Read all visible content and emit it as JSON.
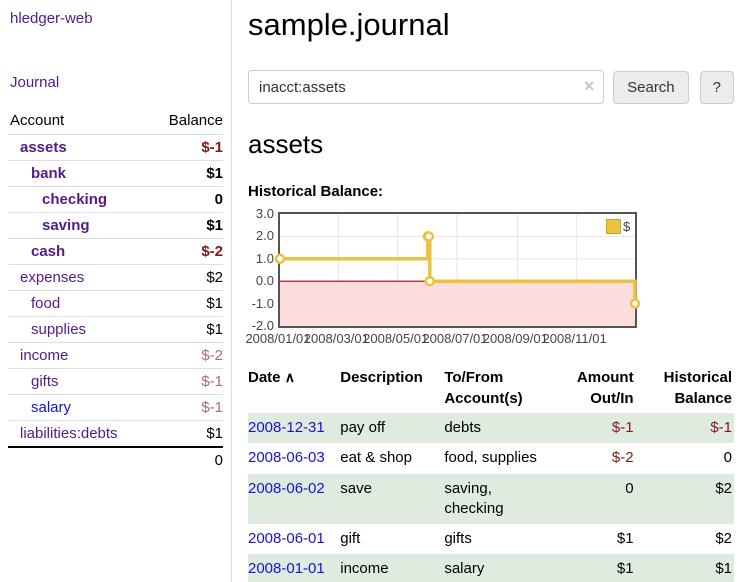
{
  "colors": {
    "link_purple": "#551A8B",
    "link_blue": "#1414d6",
    "negative_strong": "#801818",
    "negative_weak": "#b36b6b",
    "row_stripe": "#dfebdf",
    "divider": "#dddddd",
    "accent_yellow": "#EDC240",
    "chart_border": "#545454",
    "chart_grid": "#e6e6e6",
    "zero_line": "#aa0000",
    "negative_fill": "#ffdddd",
    "axis_text": "#444444",
    "button_bg": "#ececec",
    "button_border": "#cccccc",
    "input_border": "#cccccc",
    "clear_icon": "#c9c1dd"
  },
  "app": {
    "title": "hledger-web"
  },
  "sidebar": {
    "journal_link": "Journal",
    "table": {
      "headers": {
        "account": "Account",
        "balance": "Balance"
      },
      "rows": [
        {
          "account": "assets",
          "balance": "$-1",
          "depth": 1,
          "bold": true,
          "balance_class": "neg-strong",
          "link": "purple"
        },
        {
          "account": "bank",
          "balance": "$1",
          "depth": 2,
          "bold": true,
          "balance_class": "",
          "link": "purple"
        },
        {
          "account": "checking",
          "balance": "0",
          "depth": 3,
          "bold": true,
          "balance_class": "",
          "link": "purple"
        },
        {
          "account": "saving",
          "balance": "$1",
          "depth": 3,
          "bold": true,
          "balance_class": "",
          "link": "purple"
        },
        {
          "account": "cash",
          "balance": "$-2",
          "depth": 2,
          "bold": true,
          "balance_class": "neg-strong",
          "link": "purple"
        },
        {
          "account": "expenses",
          "balance": "$2",
          "depth": 1,
          "bold": false,
          "balance_class": "",
          "link": "purple"
        },
        {
          "account": "food",
          "balance": "$1",
          "depth": 2,
          "bold": false,
          "balance_class": "",
          "link": "purple"
        },
        {
          "account": "supplies",
          "balance": "$1",
          "depth": 2,
          "bold": false,
          "balance_class": "",
          "link": "purple"
        },
        {
          "account": "income",
          "balance": "$-2",
          "depth": 1,
          "bold": false,
          "balance_class": "neg-weak",
          "link": "purple"
        },
        {
          "account": "gifts",
          "balance": "$-1",
          "depth": 2,
          "bold": false,
          "balance_class": "neg-weak",
          "link": "purple"
        },
        {
          "account": "salary",
          "balance": "$-1",
          "depth": 2,
          "bold": false,
          "balance_class": "neg-weak",
          "link": "blue"
        },
        {
          "account": "liabilities:debts",
          "balance": "$1",
          "depth": 1,
          "bold": false,
          "balance_class": "",
          "link": "purple"
        }
      ],
      "total": "0"
    }
  },
  "header": {
    "title": "sample.journal"
  },
  "search": {
    "value": "inacct:assets",
    "clear_icon": "✕",
    "button_label": "Search",
    "help_label": "?"
  },
  "account_page": {
    "title": "assets",
    "chart_label": "Historical Balance:"
  },
  "chart_data": {
    "type": "line",
    "step": true,
    "title": "Historical Balance:",
    "legend": "$",
    "legend_position": "top-right",
    "grid": true,
    "xlim": [
      "2008-01-01",
      "2008-12-31"
    ],
    "ylim": [
      -2,
      3
    ],
    "y_ticks": [
      3.0,
      2.0,
      1.0,
      0.0,
      -1.0,
      -2.0
    ],
    "x_ticks": [
      "2008/01/01",
      "2008/03/01",
      "2008/05/01",
      "2008/07/01",
      "2008/09/01",
      "2008/11/01"
    ],
    "series": [
      {
        "name": "$",
        "points": [
          [
            "2008-01-01",
            1
          ],
          [
            "2008-06-01",
            2
          ],
          [
            "2008-06-02",
            2
          ],
          [
            "2008-06-03",
            0
          ],
          [
            "2008-12-31",
            -1
          ]
        ]
      }
    ]
  },
  "register": {
    "headers": {
      "date": "Date",
      "sort_icon": "∧",
      "description": "Description",
      "account": "To/From Account(s)",
      "amount": "Amount Out/In",
      "balance": "Historical Balance"
    },
    "rows": [
      {
        "date": "2008-12-31",
        "description": "pay off",
        "accounts": "debts",
        "amount": "$-1",
        "amount_negative": true,
        "balance": "$-1",
        "balance_negative": true
      },
      {
        "date": "2008-06-03",
        "description": "eat & shop",
        "accounts": "food, supplies",
        "amount": "$-2",
        "amount_negative": true,
        "balance": "0",
        "balance_negative": false
      },
      {
        "date": "2008-06-02",
        "description": "save",
        "accounts": "saving, checking",
        "amount": "0",
        "amount_negative": false,
        "balance": "$2",
        "balance_negative": false
      },
      {
        "date": "2008-06-01",
        "description": "gift",
        "accounts": "gifts",
        "amount": "$1",
        "amount_negative": false,
        "balance": "$2",
        "balance_negative": false
      },
      {
        "date": "2008-01-01",
        "description": "income",
        "accounts": "salary",
        "amount": "$1",
        "amount_negative": false,
        "balance": "$1",
        "balance_negative": false
      }
    ]
  }
}
